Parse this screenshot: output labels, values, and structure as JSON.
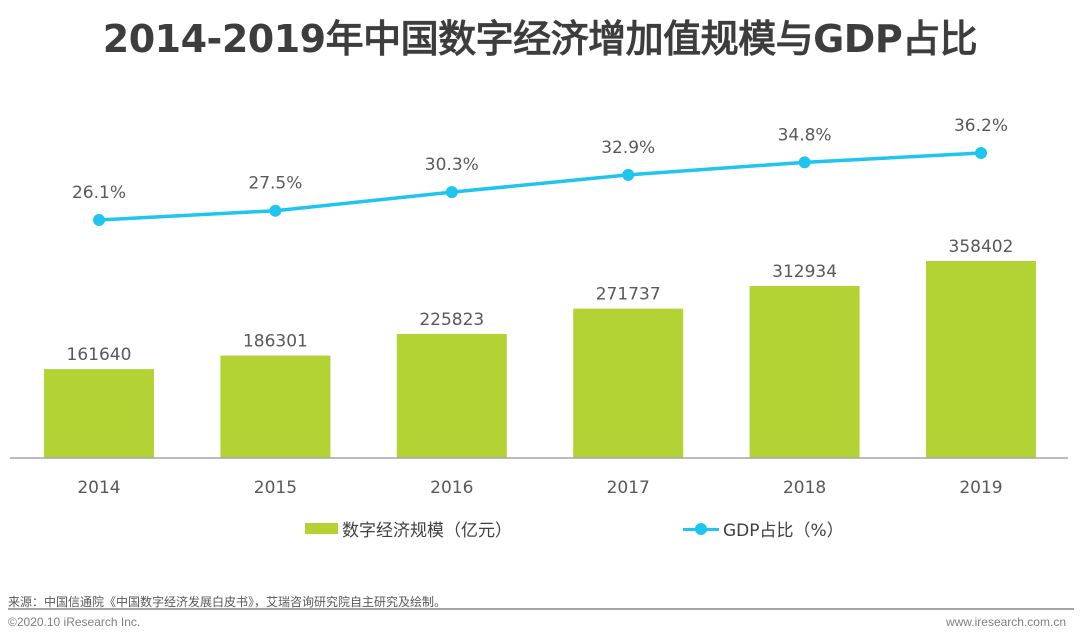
{
  "chart_data": {
    "type": "bar",
    "title": "2014-2019年中国数字经济增加值规模与GDP占比",
    "categories": [
      "2014",
      "2015",
      "2016",
      "2017",
      "2018",
      "2019"
    ],
    "series": [
      {
        "name": "数字经济规模（亿元）",
        "type": "bar",
        "color": "#b3d234",
        "values": [
          161640,
          186301,
          225823,
          271737,
          312934,
          358402
        ],
        "labels": [
          "161640",
          "186301",
          "225823",
          "271737",
          "312934",
          "358402"
        ]
      },
      {
        "name": "GDP占比（%）",
        "type": "line",
        "color": "#1fc5ef",
        "values": [
          26.1,
          27.5,
          30.3,
          32.9,
          34.8,
          36.2
        ],
        "labels": [
          "26.1%",
          "27.5%",
          "30.3%",
          "32.9%",
          "34.8%",
          "36.2%"
        ]
      }
    ],
    "xlabel": "",
    "ylabel": "",
    "grid": false,
    "legend_position": "bottom"
  },
  "legend": {
    "bar_label": "数字经济规模（亿元）",
    "line_label": "GDP占比（%）"
  },
  "footer": {
    "source": "来源：中国信通院《中国数字经济发展白皮书》，艾瑞咨询研究院自主研究及绘制。",
    "copyright": "©2020.10 iResearch Inc.",
    "website": "www.iresearch.com.cn"
  }
}
